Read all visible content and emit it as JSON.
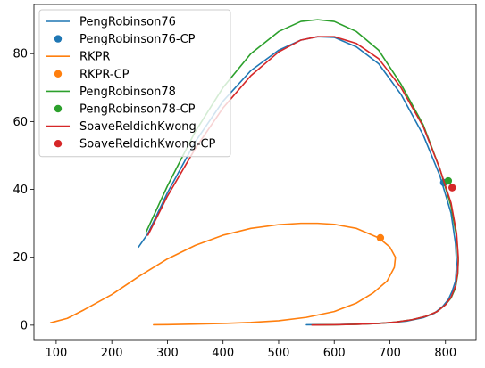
{
  "chart_data": {
    "type": "line",
    "title": "",
    "xlabel": "",
    "ylabel": "",
    "xlim": [
      60,
      855
    ],
    "ylim": [
      -4.5,
      94.5
    ],
    "xticks": [
      100,
      200,
      300,
      400,
      500,
      600,
      700,
      800
    ],
    "yticks": [
      0,
      20,
      40,
      60,
      80
    ],
    "grid": false,
    "legend_position": "top-left",
    "series": [
      {
        "name": "PengRobinson76",
        "kind": "line",
        "color": "#1f77b4",
        "x": [
          248,
          265,
          300,
          350,
          400,
          450,
          500,
          540,
          570,
          600,
          640,
          680,
          720,
          760,
          790,
          810,
          818,
          820,
          818,
          812,
          805,
          795,
          780,
          760,
          730,
          700,
          650,
          600,
          550
        ],
        "y": [
          23,
          27,
          39,
          54,
          66,
          75,
          81,
          84,
          85,
          84.8,
          82,
          77,
          68,
          56,
          44,
          33,
          24,
          18,
          13,
          10,
          7.5,
          5.5,
          3.5,
          2.2,
          1.2,
          0.7,
          0.3,
          0.15,
          0.1
        ]
      },
      {
        "name": "PengRobinson76-CP",
        "kind": "point",
        "color": "#1f77b4",
        "x": [
          797
        ],
        "y": [
          42
        ]
      },
      {
        "name": "RKPR",
        "kind": "line",
        "color": "#ff7f0e",
        "x": [
          90,
          120,
          150,
          200,
          250,
          300,
          350,
          400,
          450,
          500,
          540,
          570,
          600,
          640,
          680,
          700,
          710,
          708,
          695,
          670,
          640,
          600,
          550,
          500,
          450,
          400,
          350,
          300,
          275
        ],
        "y": [
          0.7,
          2,
          4.5,
          9,
          14.5,
          19.5,
          23.5,
          26.5,
          28.5,
          29.6,
          30,
          30,
          29.7,
          28.5,
          25.7,
          23,
          20,
          17,
          13,
          9.5,
          6.5,
          4,
          2.3,
          1.3,
          0.8,
          0.5,
          0.3,
          0.15,
          0.1
        ]
      },
      {
        "name": "RKPR-CP",
        "kind": "point",
        "color": "#ff7f0e",
        "x": [
          683
        ],
        "y": [
          25.7
        ]
      },
      {
        "name": "PengRobinson78",
        "kind": "line",
        "color": "#2ca02c",
        "x": [
          262,
          300,
          350,
          400,
          450,
          500,
          540,
          570,
          600,
          640,
          680,
          720,
          760,
          790,
          810,
          820,
          823,
          822,
          818,
          810,
          800,
          785,
          765,
          740,
          710,
          680,
          640,
          600,
          560
        ],
        "y": [
          27.5,
          41,
          57,
          70,
          80,
          86.5,
          89.5,
          90,
          89.5,
          86.5,
          81,
          71,
          59,
          46,
          35,
          26,
          19,
          15,
          11,
          8,
          6,
          4,
          2.6,
          1.6,
          0.9,
          0.5,
          0.25,
          0.1,
          0.05
        ]
      },
      {
        "name": "PengRobinson78-CP",
        "kind": "point",
        "color": "#2ca02c",
        "x": [
          805
        ],
        "y": [
          42.5
        ]
      },
      {
        "name": "SoaveReldichKwong",
        "kind": "line",
        "color": "#d62728",
        "x": [
          265,
          300,
          350,
          400,
          450,
          500,
          540,
          570,
          600,
          640,
          680,
          720,
          760,
          790,
          810,
          820,
          823,
          822,
          818,
          810,
          800,
          785,
          765,
          740,
          710,
          680,
          640,
          600,
          560
        ],
        "y": [
          26.5,
          38,
          52,
          64,
          73.5,
          80.5,
          84,
          85,
          85,
          83,
          78.5,
          70,
          58.5,
          46,
          36,
          27,
          20,
          15.5,
          11.5,
          8.2,
          6,
          4,
          2.6,
          1.6,
          0.9,
          0.5,
          0.25,
          0.1,
          0.05
        ]
      },
      {
        "name": "SoaveReldichKwong-CP",
        "kind": "point",
        "color": "#d62728",
        "x": [
          812
        ],
        "y": [
          40.5
        ]
      }
    ]
  }
}
